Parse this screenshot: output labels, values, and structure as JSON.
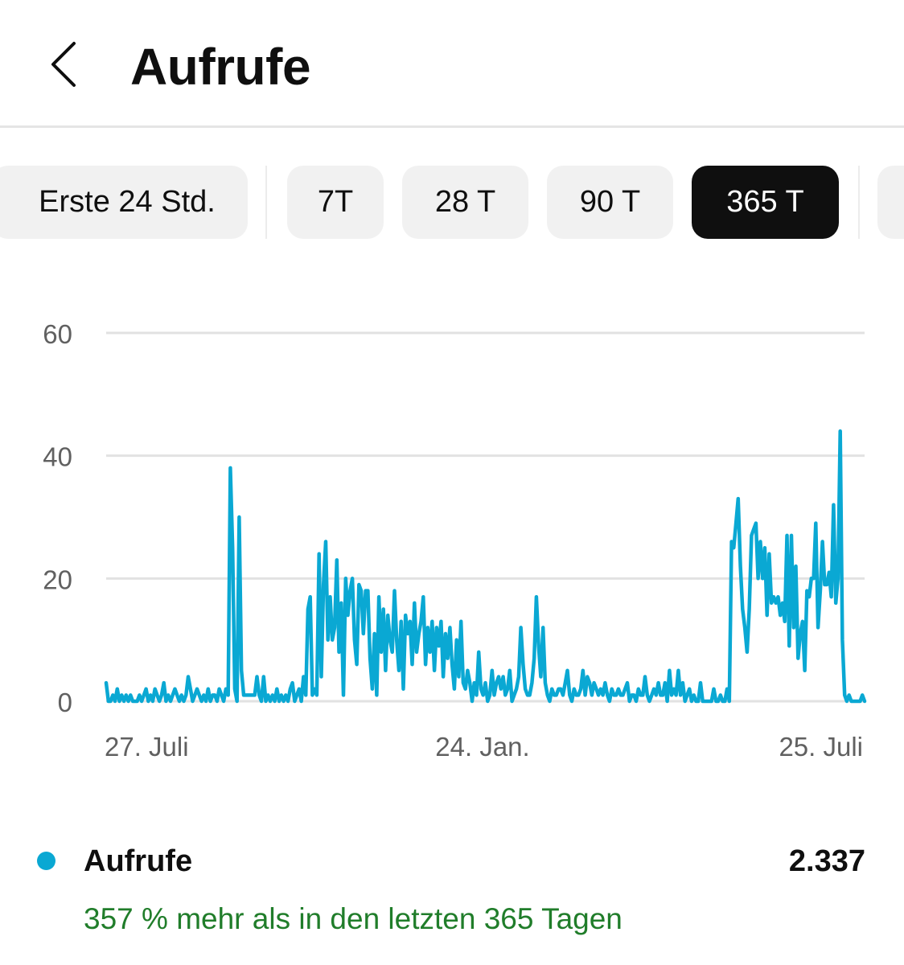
{
  "header": {
    "title": "Aufrufe",
    "back_icon": "chevron-left-icon"
  },
  "range_chips": [
    {
      "label": "Erste 24 Std.",
      "active": false
    },
    {
      "label": "7T",
      "active": false
    },
    {
      "label": "28 T",
      "active": false
    },
    {
      "label": "90 T",
      "active": false
    },
    {
      "label": "365 T",
      "active": true
    }
  ],
  "colors": {
    "series": "#0aa8d3",
    "positive": "#207d2a",
    "grid": "#e2e2e2",
    "axis_text": "#606060"
  },
  "chart_data": {
    "type": "line",
    "title": "",
    "xlabel": "",
    "ylabel": "",
    "ylim": [
      0,
      60
    ],
    "y_ticks": [
      "0",
      "20",
      "40",
      "60"
    ],
    "x_ticks": [
      "27. Juli",
      "24. Jan.",
      "25. Juli"
    ],
    "grid": true,
    "series": [
      {
        "name": "Aufrufe",
        "values": [
          3,
          0,
          0,
          1,
          0,
          2,
          0,
          1,
          0,
          1,
          0,
          1,
          0,
          0,
          0,
          1,
          0,
          1,
          2,
          0,
          1,
          0,
          2,
          1,
          0,
          1,
          3,
          0,
          1,
          0,
          1,
          2,
          1,
          0,
          1,
          0,
          1,
          4,
          2,
          0,
          1,
          2,
          1,
          0,
          1,
          0,
          2,
          0,
          1,
          1,
          0,
          2,
          1,
          0,
          2,
          1,
          38,
          25,
          2,
          0,
          30,
          5,
          1,
          1,
          1,
          1,
          1,
          1,
          4,
          1,
          0,
          4,
          0,
          1,
          0,
          1,
          0,
          2,
          0,
          1,
          0,
          1,
          0,
          2,
          3,
          0,
          1,
          2,
          0,
          4,
          1,
          15,
          17,
          1,
          2,
          1,
          24,
          4,
          19,
          26,
          10,
          17,
          10,
          12,
          23,
          8,
          16,
          1,
          20,
          14,
          18,
          20,
          10,
          6,
          19,
          18,
          11,
          18,
          18,
          7,
          2,
          11,
          1,
          17,
          8,
          15,
          5,
          14,
          10,
          8,
          18,
          10,
          5,
          13,
          2,
          14,
          11,
          13,
          6,
          16,
          8,
          11,
          13,
          17,
          6,
          12,
          8,
          13,
          5,
          12,
          9,
          13,
          4,
          11,
          7,
          12,
          6,
          2,
          10,
          4,
          13,
          3,
          2,
          5,
          3,
          0,
          3,
          1,
          8,
          2,
          1,
          3,
          0,
          1,
          5,
          1,
          3,
          4,
          2,
          4,
          1,
          2,
          5,
          0,
          1,
          2,
          4,
          12,
          6,
          2,
          1,
          1,
          3,
          7,
          17,
          9,
          4,
          12,
          3,
          1,
          0,
          2,
          1,
          1,
          2,
          2,
          1,
          3,
          5,
          1,
          0,
          2,
          1,
          1,
          2,
          5,
          1,
          4,
          3,
          1,
          3,
          2,
          1,
          2,
          1,
          3,
          1,
          0,
          2,
          1,
          1,
          2,
          1,
          1,
          2,
          3,
          0,
          1,
          1,
          0,
          2,
          1,
          1,
          4,
          1,
          0,
          1,
          2,
          1,
          3,
          1,
          1,
          3,
          0,
          5,
          1,
          2,
          1,
          5,
          1,
          3,
          0,
          1,
          2,
          0,
          1,
          0,
          0,
          3,
          0,
          0,
          0,
          0,
          0,
          2,
          0,
          0,
          1,
          0,
          0,
          2,
          0,
          26,
          25,
          29,
          33,
          22,
          15,
          12,
          8,
          15,
          27,
          28,
          29,
          20,
          26,
          20,
          25,
          14,
          24,
          16,
          17,
          16,
          17,
          14,
          16,
          13,
          27,
          9,
          27,
          12,
          22,
          7,
          11,
          13,
          5,
          18,
          17,
          20,
          20,
          29,
          12,
          18,
          26,
          19,
          19,
          21,
          17,
          32,
          16,
          20,
          44,
          10,
          1,
          0,
          1,
          0,
          0,
          0,
          0,
          0,
          1,
          0
        ]
      }
    ]
  },
  "summary": {
    "label": "Aufrufe",
    "value": "2.337",
    "comparison": "357 % mehr als in den letzten 365 Tagen"
  }
}
